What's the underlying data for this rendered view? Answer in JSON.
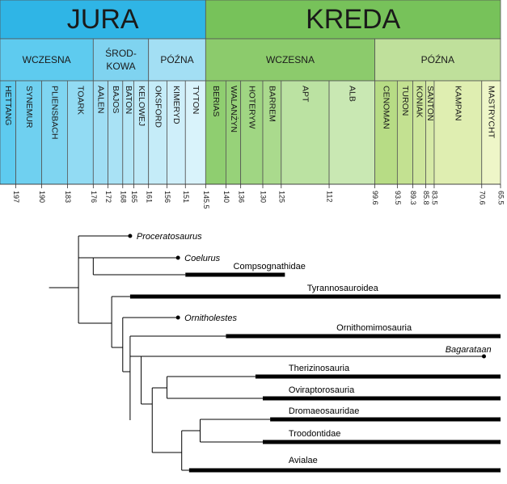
{
  "colors": {
    "jura_era": "#2fb5e6",
    "jura_sub": "#5ecbef",
    "jura_stage_light": "#a8e2f7",
    "jura_stage_mid": "#78d0f0",
    "kreda_era": "#77c25a",
    "kreda_sub_early": "#93cf74",
    "kreda_sub_late": "#bfe09b",
    "kreda_stage_early": "#a9d98d",
    "kreda_stage_early_light": "#c4e6ad",
    "kreda_stage_late": "#cfe7a0",
    "kreda_stage_late_light": "#e2f0bc",
    "cret_last": "#eef6c8",
    "line": "#000000",
    "border": "#333333"
  },
  "eras": [
    {
      "label": "JURA",
      "start": 201.3,
      "end": 145.5,
      "color": "#2fb5e6"
    },
    {
      "label": "KREDA",
      "start": 145.5,
      "end": 65.5,
      "color": "#77c25a"
    }
  ],
  "subperiods": [
    {
      "label": "WCZESNA",
      "start": 201.3,
      "end": 176,
      "color": "#5ecbef"
    },
    {
      "label": "ŚROD-",
      "label2": "KOWA",
      "start": 176,
      "end": 161,
      "color": "#7fd3f0"
    },
    {
      "label": "PÓŹNA",
      "start": 161,
      "end": 145.5,
      "color": "#a3dff4"
    },
    {
      "label": "WCZESNA",
      "start": 145.5,
      "end": 99.6,
      "color": "#8ccb6c"
    },
    {
      "label": "PÓŹNA",
      "start": 99.6,
      "end": 65.5,
      "color": "#bfe09b"
    }
  ],
  "stages": [
    {
      "label": "HETTANG",
      "start": 201.3,
      "end": 197,
      "color": "#5ecbef"
    },
    {
      "label": "SYNEMUR",
      "start": 197,
      "end": 190,
      "color": "#6fd0f0"
    },
    {
      "label": "PLIENSBACH",
      "start": 190,
      "end": 183,
      "color": "#7fd5f1"
    },
    {
      "label": "TOARK",
      "start": 183,
      "end": 176,
      "color": "#92dbf3"
    },
    {
      "label": "AALEN",
      "start": 176,
      "end": 172,
      "color": "#9fdef4"
    },
    {
      "label": "BAJOS",
      "start": 172,
      "end": 168,
      "color": "#a9e2f5"
    },
    {
      "label": "BATON",
      "start": 168,
      "end": 165,
      "color": "#b3e6f6"
    },
    {
      "label": "KELOWEJ",
      "start": 165,
      "end": 161,
      "color": "#bde9f7"
    },
    {
      "label": "OKSFORD",
      "start": 161,
      "end": 156,
      "color": "#c5ecf8"
    },
    {
      "label": "KIMERYD",
      "start": 156,
      "end": 151,
      "color": "#cfeffa"
    },
    {
      "label": "TYTON",
      "start": 151,
      "end": 145.5,
      "color": "#d9f3fb"
    },
    {
      "label": "BERIAS",
      "start": 145.5,
      "end": 140,
      "color": "#8fce70"
    },
    {
      "label": "WALANŻYN",
      "start": 140,
      "end": 136,
      "color": "#97d279"
    },
    {
      "label": "HOTERYW",
      "start": 136,
      "end": 130,
      "color": "#a0d683"
    },
    {
      "label": "BARREM",
      "start": 130,
      "end": 125,
      "color": "#aada8d"
    },
    {
      "label": "APT",
      "start": 125,
      "end": 112,
      "color": "#bbe2a2"
    },
    {
      "label": "ALB",
      "start": 112,
      "end": 99.6,
      "color": "#c9e8b3"
    },
    {
      "label": "CENOMAN",
      "start": 99.6,
      "end": 93.5,
      "color": "#b7dc85"
    },
    {
      "label": "TURON",
      "start": 93.5,
      "end": 89.3,
      "color": "#c3e191"
    },
    {
      "label": "KONIAK",
      "start": 89.3,
      "end": 85.8,
      "color": "#cde69c"
    },
    {
      "label": "SANTON",
      "start": 85.8,
      "end": 83.5,
      "color": "#d6eaa7"
    },
    {
      "label": "KAMPAN",
      "start": 83.5,
      "end": 70.6,
      "color": "#dfeeb1"
    },
    {
      "label": "MASTRYCHT",
      "start": 70.6,
      "end": 65.5,
      "color": "#eef6c8"
    }
  ],
  "ticks": [
    "197",
    "190",
    "183",
    "176",
    "172",
    "168",
    "165",
    "161",
    "156",
    "151",
    "145.5",
    "140",
    "136",
    "130",
    "125",
    "112",
    "99.6",
    "93.5",
    "89.3",
    "85.8",
    "83.5",
    "70.6",
    "65.5"
  ],
  "tick_values": [
    197,
    190,
    183,
    176,
    172,
    168,
    165,
    161,
    156,
    151,
    145.5,
    140,
    136,
    130,
    125,
    112,
    99.6,
    93.5,
    89.3,
    85.8,
    83.5,
    70.6,
    65.5
  ],
  "taxa": [
    {
      "label": "Proceratosaurus",
      "italic": true,
      "type": "point",
      "at": 166
    },
    {
      "label": "Coelurus",
      "italic": true,
      "type": "point",
      "at": 153
    },
    {
      "label": "Compsognathidae",
      "italic": false,
      "type": "range",
      "start": 151,
      "end": 124
    },
    {
      "label": "Tyrannosauroidea",
      "italic": false,
      "type": "range",
      "start": 166,
      "end": 65.5
    },
    {
      "label": "Ornitholestes",
      "italic": true,
      "type": "point",
      "at": 153
    },
    {
      "label": "Ornithomimosauria",
      "italic": false,
      "type": "range",
      "start": 140,
      "end": 65.5
    },
    {
      "label": "Bagarataan",
      "italic": true,
      "type": "point",
      "at": 70
    },
    {
      "label": "Therizinosauria",
      "italic": false,
      "type": "range",
      "start": 132,
      "end": 65.5
    },
    {
      "label": "Oviraptorosauria",
      "italic": false,
      "type": "range",
      "start": 130,
      "end": 65.5
    },
    {
      "label": "Dromaeosauridae",
      "italic": false,
      "type": "range",
      "start": 128,
      "end": 65.5
    },
    {
      "label": "Troodontidae",
      "italic": false,
      "type": "range",
      "start": 130,
      "end": 65.5
    },
    {
      "label": "Avialae",
      "italic": false,
      "type": "range",
      "start": 150,
      "end": 65.5
    }
  ]
}
